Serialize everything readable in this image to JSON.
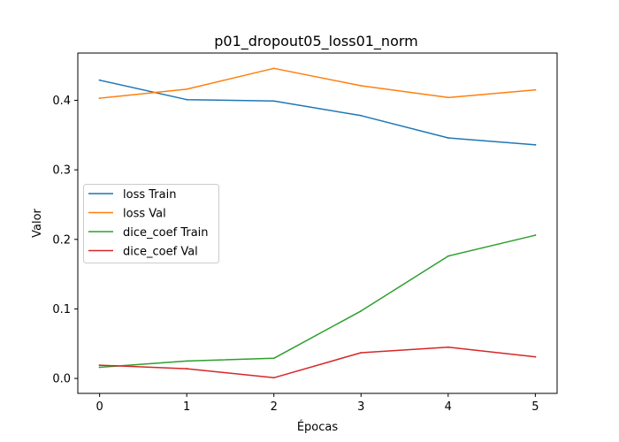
{
  "chart_data": {
    "type": "line",
    "title": "p01_dropout05_loss01_norm",
    "xlabel": "Épocas",
    "ylabel": "Valor",
    "x": [
      0,
      1,
      2,
      3,
      4,
      5
    ],
    "xlim": [
      -0.25,
      5.25
    ],
    "ylim": [
      -0.0215,
      0.468
    ],
    "xticks": [
      "0",
      "1",
      "2",
      "3",
      "4",
      "5"
    ],
    "yticks": [
      "0.0",
      "0.1",
      "0.2",
      "0.3",
      "0.4"
    ],
    "grid": false,
    "legend_position": "center-left",
    "series": [
      {
        "name": "loss Train",
        "color": "#1f77b4",
        "values": [
          0.429,
          0.401,
          0.399,
          0.378,
          0.346,
          0.336
        ]
      },
      {
        "name": "loss Val",
        "color": "#ff7f0e",
        "values": [
          0.403,
          0.416,
          0.446,
          0.421,
          0.404,
          0.415
        ]
      },
      {
        "name": "dice_coef Train",
        "color": "#2ca02c",
        "values": [
          0.016,
          0.025,
          0.029,
          0.097,
          0.176,
          0.206
        ]
      },
      {
        "name": "dice_coef Val",
        "color": "#d62728",
        "values": [
          0.019,
          0.014,
          0.001,
          0.037,
          0.045,
          0.031
        ]
      }
    ]
  }
}
